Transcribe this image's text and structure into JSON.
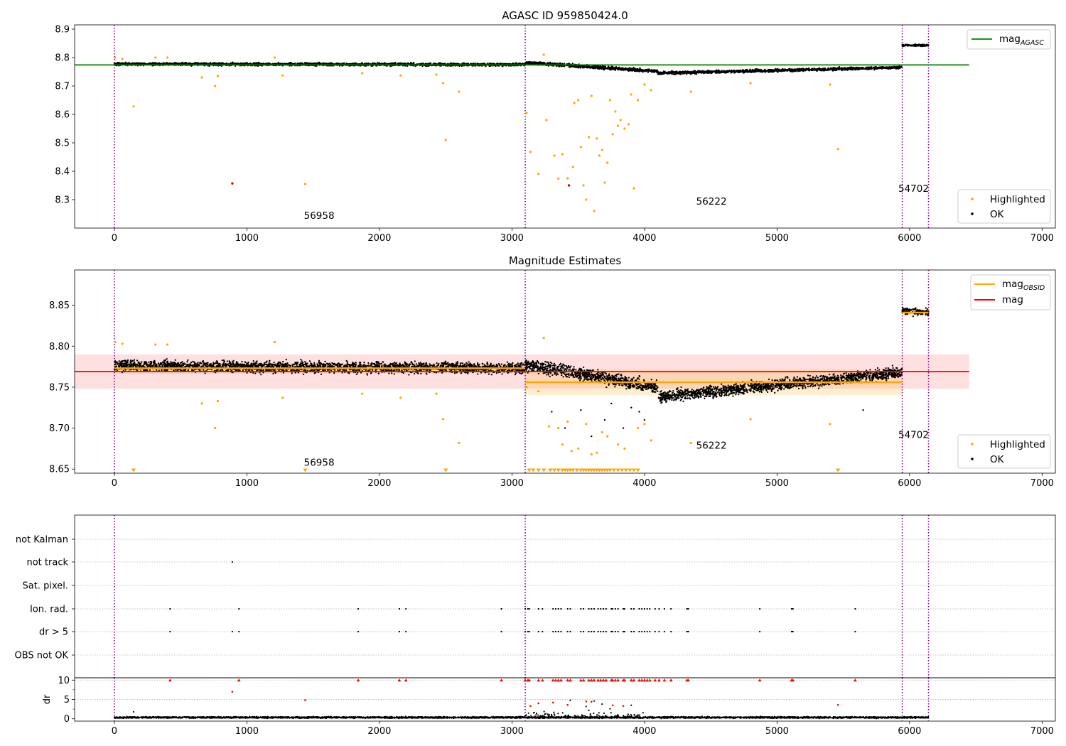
{
  "chart_data": [
    {
      "type": "scatter",
      "title": "AGASC ID 959850424.0",
      "xlim": [
        -300,
        7100
      ],
      "ylim": [
        8.2,
        8.915
      ],
      "x_ticks": [
        0,
        1000,
        2000,
        3000,
        4000,
        5000,
        6000,
        7000
      ],
      "y_ticks": [
        8.3,
        8.4,
        8.5,
        8.6,
        8.7,
        8.8,
        8.9
      ],
      "grid": false,
      "legend_top": {
        "position": "upper right",
        "entries": [
          {
            "base": "mag",
            "sub": "AGASC",
            "color": "#008000"
          }
        ]
      },
      "legend_bottom": {
        "position": "lower right",
        "entries": [
          {
            "label": "Highlighted",
            "color": "#ffa500"
          },
          {
            "label": "OK",
            "color": "#000000"
          }
        ]
      },
      "vlines": [
        0,
        3100,
        5945,
        6143
      ],
      "obsid_labels": [
        {
          "text": "56958",
          "x": 1430,
          "y": 8.232
        },
        {
          "text": "56222",
          "x": 4390,
          "y": 8.282
        },
        {
          "text": "54702",
          "x": 5915,
          "y": 8.328
        }
      ],
      "hlines": [
        {
          "name": "mag_AGASC",
          "y": 8.774,
          "x0": -300,
          "x1": 6450,
          "color": "#008000"
        }
      ],
      "ok_segments": [
        {
          "x0": 0,
          "x1": 3100,
          "start": 8.777,
          "end": 8.775,
          "spread": 0.008
        },
        {
          "x0": 3100,
          "x1": 4100,
          "start": 8.782,
          "end": 8.752,
          "spread": 0.009
        },
        {
          "x0": 4100,
          "x1": 5945,
          "start": 8.745,
          "end": 8.765,
          "spread": 0.008
        },
        {
          "x0": 5945,
          "x1": 6143,
          "start": 8.843,
          "end": 8.843,
          "spread": 0.005
        }
      ],
      "highlighted_points": [
        [
          5,
          8.8
        ],
        [
          60,
          8.795
        ],
        [
          145,
          8.628
        ],
        [
          310,
          8.8
        ],
        [
          400,
          8.8
        ],
        [
          660,
          8.73
        ],
        [
          760,
          8.7
        ],
        [
          780,
          8.735
        ],
        [
          1210,
          8.8
        ],
        [
          1270,
          8.737
        ],
        [
          1440,
          8.355
        ],
        [
          1870,
          8.745
        ],
        [
          2160,
          8.737
        ],
        [
          2430,
          8.74
        ],
        [
          2480,
          8.71
        ],
        [
          2500,
          8.51
        ],
        [
          2600,
          8.68
        ],
        [
          3110,
          8.605
        ],
        [
          3140,
          8.468
        ],
        [
          3200,
          8.39
        ],
        [
          3240,
          8.81
        ],
        [
          3260,
          8.58
        ],
        [
          3320,
          8.455
        ],
        [
          3350,
          8.374
        ],
        [
          3380,
          8.46
        ],
        [
          3420,
          8.375
        ],
        [
          3460,
          8.415
        ],
        [
          3470,
          8.64
        ],
        [
          3500,
          8.65
        ],
        [
          3520,
          8.485
        ],
        [
          3540,
          8.35
        ],
        [
          3560,
          8.3
        ],
        [
          3580,
          8.52
        ],
        [
          3600,
          8.665
        ],
        [
          3620,
          8.26
        ],
        [
          3640,
          8.515
        ],
        [
          3660,
          8.455
        ],
        [
          3680,
          8.475
        ],
        [
          3700,
          8.36
        ],
        [
          3720,
          8.43
        ],
        [
          3740,
          8.65
        ],
        [
          3760,
          8.53
        ],
        [
          3780,
          8.61
        ],
        [
          3800,
          8.56
        ],
        [
          3820,
          8.58
        ],
        [
          3850,
          8.55
        ],
        [
          3880,
          8.565
        ],
        [
          3900,
          8.67
        ],
        [
          3920,
          8.34
        ],
        [
          3950,
          8.65
        ],
        [
          4000,
          8.705
        ],
        [
          4050,
          8.685
        ],
        [
          4350,
          8.68
        ],
        [
          4800,
          8.71
        ],
        [
          5400,
          8.705
        ],
        [
          5460,
          8.478
        ]
      ],
      "red_points": [
        [
          890,
          8.357
        ],
        [
          3430,
          8.35
        ]
      ]
    },
    {
      "type": "scatter",
      "title": "Magnitude Estimates",
      "xlim": [
        -300,
        7100
      ],
      "ylim": [
        8.645,
        8.893
      ],
      "x_ticks": [
        0,
        1000,
        2000,
        3000,
        4000,
        5000,
        6000,
        7000
      ],
      "y_ticks": [
        8.65,
        8.7,
        8.75,
        8.8,
        8.85
      ],
      "grid": false,
      "legend_top": {
        "position": "upper right",
        "entries": [
          {
            "base": "mag",
            "sub": "OBSID",
            "color": "#ffa500"
          },
          {
            "base": "mag",
            "sub": "",
            "color": "#ff0000"
          }
        ]
      },
      "legend_bottom": {
        "position": "lower right",
        "entries": [
          {
            "label": "Highlighted",
            "color": "#ffa500"
          },
          {
            "label": "OK",
            "color": "#000000"
          }
        ]
      },
      "vlines": [
        0,
        3100,
        5945,
        6143
      ],
      "obsid_labels": [
        {
          "text": "56958",
          "x": 1430,
          "y": 8.654
        },
        {
          "text": "56222",
          "x": 4390,
          "y": 8.675
        },
        {
          "text": "54702",
          "x": 5915,
          "y": 8.688
        }
      ],
      "mag": {
        "value": 8.769,
        "band": [
          8.748,
          8.79
        ],
        "x0": -300,
        "x1": 6450
      },
      "mag_obsid": [
        {
          "x0": 0,
          "x1": 3100,
          "value": 8.773,
          "band": [
            8.767,
            8.779
          ]
        },
        {
          "x0": 3100,
          "x1": 5945,
          "value": 8.756,
          "band": [
            8.74,
            8.772
          ]
        },
        {
          "x0": 5945,
          "x1": 6143,
          "value": 8.841,
          "band": [
            8.836,
            8.846
          ]
        }
      ],
      "ok_segments": [
        {
          "x0": 0,
          "x1": 3100,
          "start": 8.776,
          "end": 8.773,
          "spread": 0.011
        },
        {
          "x0": 3100,
          "x1": 4100,
          "start": 8.778,
          "end": 8.75,
          "spread": 0.012
        },
        {
          "x0": 4100,
          "x1": 5945,
          "start": 8.738,
          "end": 8.768,
          "spread": 0.011
        },
        {
          "x0": 5945,
          "x1": 6143,
          "start": 8.843,
          "end": 8.841,
          "spread": 0.006
        }
      ],
      "ok_outliers": [
        [
          3300,
          8.72
        ],
        [
          3400,
          8.7
        ],
        [
          3520,
          8.722
        ],
        [
          3600,
          8.69
        ],
        [
          3700,
          8.71
        ],
        [
          3750,
          8.73
        ],
        [
          3840,
          8.7
        ],
        [
          3900,
          8.725
        ],
        [
          3960,
          8.72
        ],
        [
          4000,
          8.71
        ],
        [
          5650,
          8.722
        ]
      ],
      "highlighted_points": [
        [
          5,
          8.805
        ],
        [
          60,
          8.803
        ],
        [
          310,
          8.802
        ],
        [
          400,
          8.802
        ],
        [
          660,
          8.73
        ],
        [
          760,
          8.7
        ],
        [
          780,
          8.733
        ],
        [
          1210,
          8.805
        ],
        [
          1270,
          8.737
        ],
        [
          1870,
          8.742
        ],
        [
          2160,
          8.737
        ],
        [
          2430,
          8.742
        ],
        [
          2480,
          8.711
        ],
        [
          2600,
          8.682
        ],
        [
          3110,
          8.75
        ],
        [
          3200,
          8.745
        ],
        [
          3240,
          8.81
        ],
        [
          3280,
          8.702
        ],
        [
          3350,
          8.7
        ],
        [
          3380,
          8.68
        ],
        [
          3420,
          8.708
        ],
        [
          3450,
          8.672
        ],
        [
          3500,
          8.675
        ],
        [
          3560,
          8.705
        ],
        [
          3600,
          8.668
        ],
        [
          3640,
          8.67
        ],
        [
          3680,
          8.695
        ],
        [
          3720,
          8.69
        ],
        [
          3800,
          8.68
        ],
        [
          3850,
          8.675
        ],
        [
          3950,
          8.7
        ],
        [
          4000,
          8.705
        ],
        [
          4050,
          8.685
        ],
        [
          4350,
          8.682
        ],
        [
          4800,
          8.711
        ],
        [
          5400,
          8.705
        ]
      ],
      "down_markers": [
        145,
        1440,
        2500,
        3130,
        3160,
        3200,
        3240,
        3290,
        3320,
        3350,
        3380,
        3400,
        3420,
        3440,
        3460,
        3490,
        3520,
        3540,
        3560,
        3580,
        3600,
        3620,
        3640,
        3660,
        3680,
        3700,
        3720,
        3740,
        3770,
        3800,
        3830,
        3860,
        3890,
        3920,
        3950,
        5460
      ]
    },
    {
      "type": "scatter",
      "title": "",
      "xlim": [
        -300,
        7100
      ],
      "categories": [
        "not Kalman",
        "not track",
        "Sat. pixel.",
        "Ion. rad.",
        "dr > 5",
        "OBS not OK"
      ],
      "vlines": [
        0,
        3100,
        5945,
        6143
      ],
      "flags": {
        "not track": [
          890
        ],
        "Ion. rad.": [
          420,
          940,
          1840,
          2150,
          2200,
          2920,
          3100,
          3120,
          3130,
          3200,
          3230,
          3310,
          3330,
          3350,
          3370,
          3420,
          3440,
          3520,
          3540,
          3580,
          3600,
          3620,
          3650,
          3670,
          3690,
          3710,
          3750,
          3760,
          3780,
          3800,
          3840,
          3850,
          3900,
          3920,
          3960,
          3980,
          4000,
          4020,
          4040,
          4080,
          4110,
          4150,
          4200,
          4320,
          4330,
          4870,
          5110,
          5120,
          5590
        ],
        "dr > 5": [
          420,
          890,
          940,
          1840,
          2150,
          2200,
          2920,
          3100,
          3120,
          3130,
          3200,
          3230,
          3310,
          3330,
          3350,
          3370,
          3420,
          3440,
          3520,
          3540,
          3580,
          3600,
          3620,
          3650,
          3670,
          3690,
          3710,
          3750,
          3760,
          3780,
          3800,
          3840,
          3850,
          3900,
          3920,
          3960,
          3980,
          4000,
          4020,
          4040,
          4080,
          4110,
          4150,
          4200,
          4320,
          4330,
          4870,
          5110,
          5120,
          5590
        ]
      }
    },
    {
      "type": "scatter",
      "title": "",
      "ylabel": "dr",
      "xlim": [
        -300,
        7100
      ],
      "ylim": [
        -0.6,
        10.6
      ],
      "x_ticks": [
        0,
        1000,
        2000,
        3000,
        4000,
        5000,
        6000,
        7000
      ],
      "y_ticks": [
        0,
        5,
        10
      ],
      "vlines": [
        0,
        3100,
        5945,
        6143
      ],
      "baseline": {
        "x0": 0,
        "x1": 6143,
        "level": 0.35,
        "spread": 0.3
      },
      "cluster": {
        "x0": 3100,
        "x1": 4000,
        "level": 1.2,
        "max": 4.5
      },
      "extra_points": [
        [
          145,
          1.8
        ],
        [
          3440,
          4.8
        ],
        [
          3560,
          3.2
        ],
        [
          3580,
          2.2
        ],
        [
          3620,
          4.6
        ],
        [
          3680,
          3.8
        ],
        [
          3740,
          2.6
        ],
        [
          3900,
          3.5
        ]
      ],
      "red_points": [
        [
          890,
          7
        ],
        [
          1440,
          4.8
        ],
        [
          3140,
          3.3
        ],
        [
          3200,
          4
        ],
        [
          3310,
          4.2
        ],
        [
          3420,
          3.6
        ],
        [
          3560,
          4.5
        ],
        [
          3600,
          4.4
        ],
        [
          3760,
          3.5
        ],
        [
          3840,
          3.3
        ],
        [
          5460,
          3.6
        ]
      ],
      "red_capped": [
        420,
        940,
        1840,
        2150,
        2200,
        2920,
        3100,
        3120,
        3130,
        3200,
        3230,
        3310,
        3330,
        3350,
        3370,
        3420,
        3440,
        3520,
        3540,
        3580,
        3600,
        3620,
        3650,
        3670,
        3690,
        3710,
        3750,
        3760,
        3780,
        3800,
        3840,
        3850,
        3900,
        3920,
        3960,
        3980,
        4000,
        4020,
        4040,
        4080,
        4110,
        4150,
        4200,
        4320,
        4330,
        4870,
        5110,
        5120,
        5590
      ]
    }
  ]
}
